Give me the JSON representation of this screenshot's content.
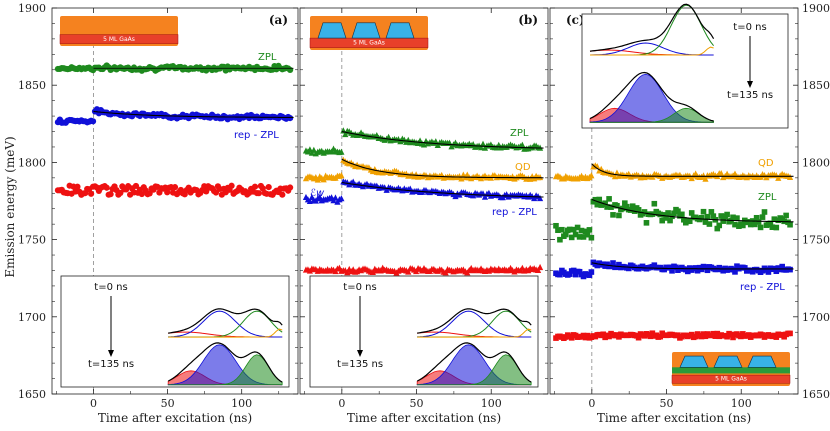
{
  "chart_data": {
    "type": "scatter",
    "shared": {
      "ylabel": "Emission energy (meV)",
      "xlabel": "Time after excitation (ns)",
      "ylim": [
        1650,
        1900
      ],
      "xlim": [
        -28,
        138
      ],
      "y_ticks": [
        1650,
        1700,
        1750,
        1800,
        1850,
        1900
      ],
      "x_ticks": [
        0,
        50,
        100
      ],
      "colors": {
        "ZPL": "#1e8a1e",
        "rep": "#1010d8",
        "red": "#ee1111",
        "QD": "#f0a000",
        "fit": "#000000",
        "GaAs_layer": "#e8402a",
        "barrier": "#f5821f",
        "dots": "#38b2e8",
        "well_green": "#2a9a3a"
      }
    },
    "panels": [
      {
        "letter": "(a)",
        "schematic_label": "5 ML GaAs",
        "series": [
          {
            "name": "ZPL",
            "label": "ZPL",
            "color_key": "ZPL",
            "marker": "circle",
            "before": 1861,
            "after": 1861,
            "tau": 0,
            "jump": 0
          },
          {
            "name": "rep - ZPL",
            "label": "rep - ZPL",
            "color_key": "rep",
            "marker": "circle",
            "before": 1827,
            "after": 1829,
            "peak": 1833,
            "tau": 40,
            "jump": 6
          },
          {
            "name": "red",
            "label": "",
            "color_key": "red",
            "marker": "circle",
            "before": 1781,
            "after": 1781,
            "tau": 0,
            "jump": 0,
            "band": [
              1779,
              1785
            ]
          }
        ],
        "inset": {
          "position": "bottom",
          "t_start": "t=0 ns",
          "t_end": "t=135 ns"
        }
      },
      {
        "letter": "(b)",
        "schematic_label": "5 ML GaAs",
        "series": [
          {
            "name": "ZPL",
            "label": "ZPL",
            "color_key": "ZPL",
            "marker": "triangle",
            "before": 1807,
            "after": 1808,
            "peak": 1820,
            "tau": 60
          },
          {
            "name": "QD",
            "label": "QD",
            "color_key": "QD",
            "marker": "triangle",
            "before": 1790,
            "after": 1790,
            "peak": 1802,
            "tau": 25
          },
          {
            "name": "Ew",
            "label": "ℰw",
            "color_key": "rep",
            "marker": "triangle",
            "before": 1776,
            "after": 1776,
            "peak": 1787,
            "tau": 70
          },
          {
            "name": "red",
            "label": "",
            "color_key": "red",
            "marker": "triangle",
            "before": 1730,
            "after": 1730,
            "tau": 0
          }
        ],
        "extra_labels": [
          "rep - ZPL"
        ],
        "inset": {
          "position": "bottom",
          "t_start": "t=0 ns",
          "t_end": "t=135 ns"
        }
      },
      {
        "letter": "(c)",
        "schematic_label": "5 ML GaAs",
        "series": [
          {
            "name": "QD",
            "label": "QD",
            "color_key": "QD",
            "marker": "triangle",
            "before": 1790,
            "after": 1791,
            "peak": 1799,
            "tau": 8
          },
          {
            "name": "ZPL",
            "label": "ZPL",
            "color_key": "ZPL",
            "marker": "square",
            "before": 1755,
            "after": 1761,
            "peak": 1776,
            "tau": 40
          },
          {
            "name": "rep - ZPL",
            "label": "rep - ZPL",
            "color_key": "rep",
            "marker": "square",
            "before": 1728,
            "after": 1731,
            "peak": 1735,
            "tau": 20
          },
          {
            "name": "red",
            "label": "",
            "color_key": "red",
            "marker": "square",
            "before": 1687,
            "after": 1688,
            "peak": 1688,
            "tau": 0
          }
        ],
        "inset": {
          "position": "top",
          "t_start": "t=0 ns",
          "t_end": "t=135 ns"
        }
      }
    ]
  }
}
